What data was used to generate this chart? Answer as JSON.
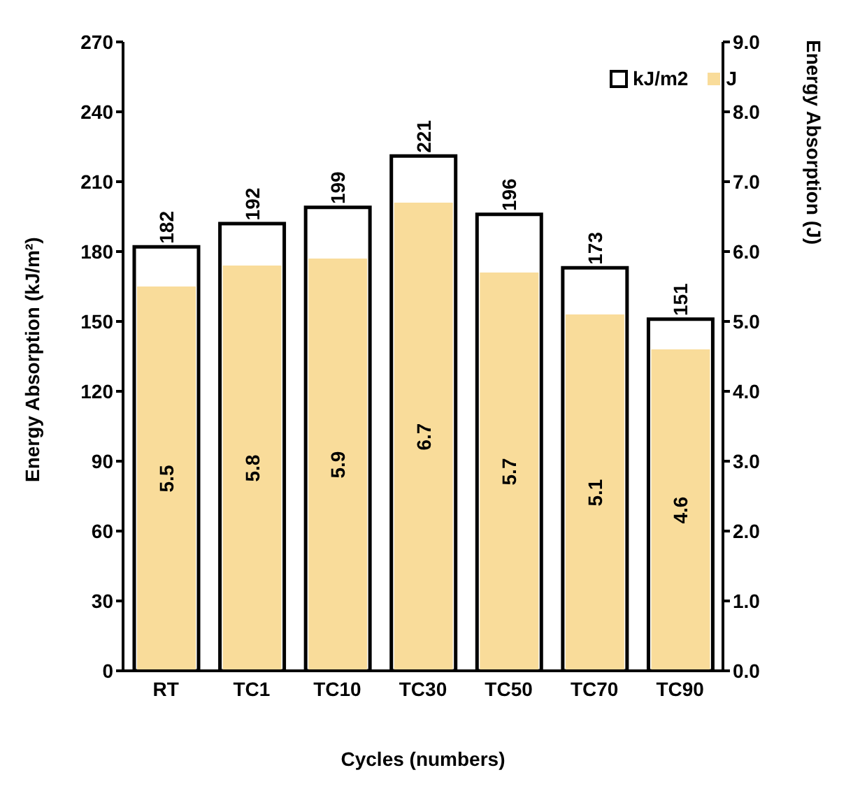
{
  "chart_data": {
    "type": "bar",
    "xlabel": "Cycles (numbers)",
    "ylabel": "Energy Absorption (kJ/m²)",
    "y2label": "Energy Absorption (J)",
    "categories": [
      "RT",
      "TC1",
      "TC10",
      "TC30",
      "TC50",
      "TC70",
      "TC90"
    ],
    "series": [
      {
        "name": "kJ/m2",
        "color": "#ffffff",
        "values": [
          182,
          192,
          199,
          221,
          196,
          173,
          151
        ]
      },
      {
        "name": "J",
        "color": "#f9dc9a",
        "axis": "y2",
        "values": [
          5.5,
          5.8,
          5.9,
          6.7,
          5.7,
          5.1,
          4.6
        ]
      }
    ],
    "ylim": [
      0,
      270
    ],
    "yticks": [
      0,
      30,
      60,
      90,
      120,
      150,
      180,
      210,
      240,
      270
    ],
    "y2lim": [
      0,
      9
    ],
    "y2ticks": [
      {
        "value": 0,
        "label": "0.0"
      },
      {
        "value": 1,
        "label": "1.0"
      },
      {
        "value": 2,
        "label": "2.0"
      },
      {
        "value": 3,
        "label": "3.0"
      },
      {
        "value": 4,
        "label": "4.0"
      },
      {
        "value": 5,
        "label": "5.0"
      },
      {
        "value": 6,
        "label": "6.0"
      },
      {
        "value": 7,
        "label": "7.0"
      },
      {
        "value": 8,
        "label": "8.0"
      },
      {
        "value": 9,
        "label": "9.0"
      }
    ],
    "data_labels": true,
    "legend": "top right",
    "grid": false
  }
}
